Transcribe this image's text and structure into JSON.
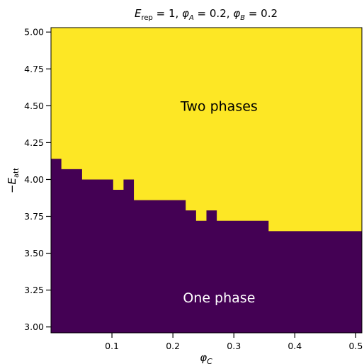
{
  "chart_data": {
    "type": "heatmap",
    "title": "E_rep = 1,  φ_A = 0.2,  φ_B = 0.2",
    "title_parts": {
      "rep_sym": "E",
      "rep_sub": "rep",
      "rep_val": " = 1,  ",
      "a_sym": "φ",
      "a_sub": "A",
      "a_val": " = 0.2,  ",
      "b_sym": "φ",
      "b_sub": "B",
      "b_val": " = 0.2"
    },
    "xlabel": "φ_C",
    "xlabel_parts": {
      "sym": "φ",
      "sub": "C"
    },
    "ylabel": "−E_att",
    "ylabel_parts": {
      "sym": "−E",
      "sub": "att"
    },
    "xlim": [
      0.0,
      0.51
    ],
    "ylim": [
      2.96,
      5.03
    ],
    "x_ticks": [
      0.1,
      0.2,
      0.3,
      0.4,
      0.5
    ],
    "x_tick_labels": [
      "0.1",
      "0.2",
      "0.3",
      "0.4",
      "0.5"
    ],
    "y_ticks": [
      3.0,
      3.25,
      3.5,
      3.75,
      4.0,
      4.25,
      4.5,
      4.75,
      5.0
    ],
    "y_tick_labels": [
      "3.00",
      "3.25",
      "3.50",
      "3.75",
      "4.00",
      "4.25",
      "4.50",
      "4.75",
      "5.00"
    ],
    "colors": {
      "two_phases": "#fde725",
      "one_phase": "#440154"
    },
    "annotations": [
      {
        "text": "Two phases",
        "x": 0.22,
        "y": 4.5,
        "color": "#000000"
      },
      {
        "text": "One phase",
        "x": 0.22,
        "y": 3.2,
        "color": "#ffffff"
      }
    ],
    "boundary": {
      "description": "phase boundary: -E_att value below which the system is one phase, per φ_C segment",
      "segments": [
        {
          "x_start": 0.0,
          "x_end": 0.017,
          "y": 4.14
        },
        {
          "x_start": 0.017,
          "x_end": 0.051,
          "y": 4.07
        },
        {
          "x_start": 0.051,
          "x_end": 0.102,
          "y": 4.0
        },
        {
          "x_start": 0.102,
          "x_end": 0.119,
          "y": 3.93
        },
        {
          "x_start": 0.119,
          "x_end": 0.136,
          "y": 4.0
        },
        {
          "x_start": 0.136,
          "x_end": 0.221,
          "y": 3.86
        },
        {
          "x_start": 0.221,
          "x_end": 0.238,
          "y": 3.79
        },
        {
          "x_start": 0.238,
          "x_end": 0.255,
          "y": 3.72
        },
        {
          "x_start": 0.255,
          "x_end": 0.272,
          "y": 3.79
        },
        {
          "x_start": 0.272,
          "x_end": 0.357,
          "y": 3.72
        },
        {
          "x_start": 0.357,
          "x_end": 0.51,
          "y": 3.65
        }
      ]
    }
  }
}
